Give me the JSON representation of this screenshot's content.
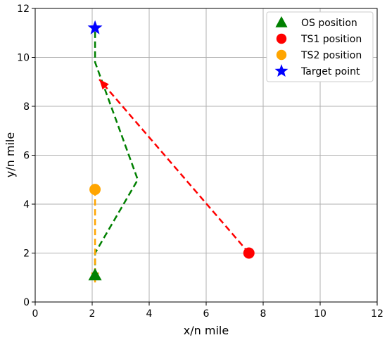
{
  "chart_data": {
    "type": "scatter",
    "xlabel": "x/n mile",
    "ylabel": "y/n mile",
    "xlim": [
      0,
      12
    ],
    "ylim": [
      0,
      12
    ],
    "xticks": [
      0,
      2,
      4,
      6,
      8,
      10,
      12
    ],
    "yticks": [
      0,
      2,
      4,
      6,
      8,
      10,
      12
    ],
    "grid": true,
    "legend_position": "top-right",
    "series": [
      {
        "name": "OS position",
        "marker": "triangle",
        "color": "#008000",
        "points": [
          [
            2.1,
            1.1
          ]
        ]
      },
      {
        "name": "TS1 position",
        "marker": "circle",
        "color": "#ff0000",
        "points": [
          [
            7.5,
            2.0
          ]
        ]
      },
      {
        "name": "TS2 position",
        "marker": "circle",
        "color": "#ffa500",
        "points": [
          [
            2.1,
            4.6
          ]
        ]
      },
      {
        "name": "Target point",
        "marker": "star",
        "color": "#0000ff",
        "points": [
          [
            2.1,
            11.2
          ]
        ]
      }
    ],
    "paths": [
      {
        "color": "#008000",
        "style": "dashed",
        "points": [
          [
            2.1,
            1.1
          ],
          [
            2.1,
            2.0
          ],
          [
            3.6,
            5.0
          ],
          [
            2.1,
            9.8
          ],
          [
            2.1,
            11.2
          ]
        ]
      },
      {
        "color": "#ff0000",
        "style": "dashed",
        "arrow": true,
        "points": [
          [
            7.5,
            2.0
          ],
          [
            2.25,
            9.1
          ]
        ]
      },
      {
        "color": "#ffa500",
        "style": "dashed",
        "arrow": true,
        "points": [
          [
            2.1,
            4.6
          ],
          [
            2.1,
            0.8
          ]
        ]
      }
    ]
  }
}
